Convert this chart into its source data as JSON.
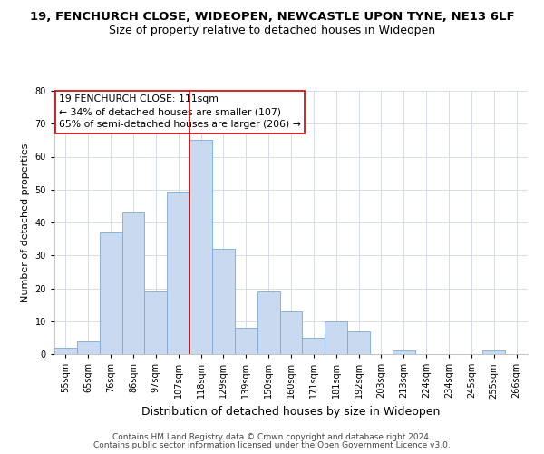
{
  "title": "19, FENCHURCH CLOSE, WIDEOPEN, NEWCASTLE UPON TYNE, NE13 6LF",
  "subtitle": "Size of property relative to detached houses in Wideopen",
  "xlabel": "Distribution of detached houses by size in Wideopen",
  "ylabel": "Number of detached properties",
  "bin_labels": [
    "55sqm",
    "65sqm",
    "76sqm",
    "86sqm",
    "97sqm",
    "107sqm",
    "118sqm",
    "129sqm",
    "139sqm",
    "150sqm",
    "160sqm",
    "171sqm",
    "181sqm",
    "192sqm",
    "203sqm",
    "213sqm",
    "224sqm",
    "234sqm",
    "245sqm",
    "255sqm",
    "266sqm"
  ],
  "bar_heights": [
    2,
    4,
    37,
    43,
    19,
    49,
    65,
    32,
    8,
    19,
    13,
    5,
    10,
    7,
    0,
    1,
    0,
    0,
    0,
    1,
    0
  ],
  "bar_color": "#c9d9f0",
  "bar_edge_color": "#7aaad4",
  "property_line_bin_index": 5,
  "ylim": [
    0,
    80
  ],
  "yticks": [
    0,
    10,
    20,
    30,
    40,
    50,
    60,
    70,
    80
  ],
  "annotation_title": "19 FENCHURCH CLOSE: 111sqm",
  "annotation_line1": "← 34% of detached houses are smaller (107)",
  "annotation_line2": "65% of semi-detached houses are larger (206) →",
  "annotation_box_color": "#ffffff",
  "annotation_box_edge": "#cc0000",
  "footer1": "Contains HM Land Registry data © Crown copyright and database right 2024.",
  "footer2": "Contains public sector information licensed under the Open Government Licence v3.0.",
  "title_fontsize": 9.5,
  "subtitle_fontsize": 9,
  "xlabel_fontsize": 9,
  "ylabel_fontsize": 8,
  "tick_fontsize": 7,
  "annotation_fontsize": 7.8,
  "footer_fontsize": 6.5
}
